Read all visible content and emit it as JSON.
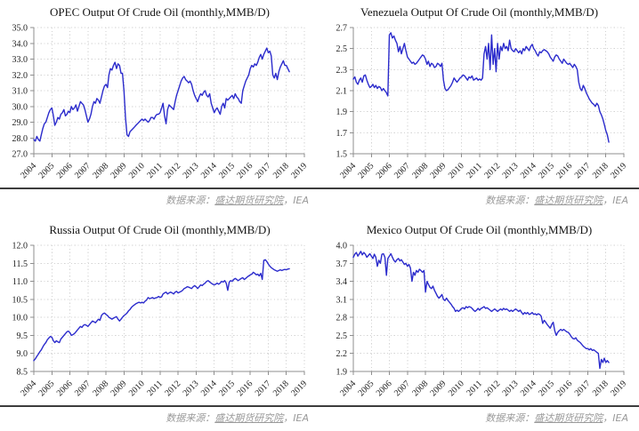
{
  "source_note": {
    "prefix": "数据来源：",
    "link": "盛达期货研究院",
    "suffix": "，IEA"
  },
  "style": {
    "line_color": "#2b2bcc",
    "grid_color": "#d2d2d2",
    "axis_color": "#8f8f8f",
    "tick_text_color": "#1c1c1c",
    "separator_color": "#3d3d3d",
    "caption_color": "#9a9a9a",
    "background": "#ffffff"
  },
  "chart_data": [
    {
      "type": "line",
      "title": "OPEC Output Of Crude Oil (monthly,MMB/D)",
      "x_range": [
        2004,
        2019
      ],
      "x_tick_labels": [
        "2004",
        "2005",
        "2006",
        "2007",
        "2008",
        "2009",
        "2010",
        "2011",
        "2012",
        "2013",
        "2014",
        "2015",
        "2016",
        "2017",
        "2018",
        "2019"
      ],
      "months_per_point": 1,
      "start_year": 2004,
      "ylim": [
        27.0,
        35.0
      ],
      "y_ticks": [
        27.0,
        28.0,
        29.0,
        30.0,
        31.0,
        32.0,
        33.0,
        34.0,
        35.0
      ],
      "y_decimals": 1,
      "grid": true,
      "legend": "none",
      "line_color": "#2b2bcc",
      "values": [
        27.9,
        27.8,
        28.1,
        27.9,
        27.8,
        28.2,
        28.6,
        28.9,
        29.0,
        29.3,
        29.6,
        29.8,
        29.9,
        29.4,
        28.8,
        29.0,
        29.3,
        29.2,
        29.5,
        29.6,
        29.8,
        29.4,
        29.5,
        29.7,
        29.6,
        30.0,
        29.8,
        29.9,
        30.1,
        29.7,
        30.0,
        30.3,
        30.2,
        30.1,
        29.8,
        29.4,
        29.0,
        29.2,
        29.5,
        30.0,
        30.3,
        30.2,
        30.5,
        30.4,
        30.2,
        30.6,
        31.0,
        31.3,
        31.4,
        31.2,
        32.0,
        32.4,
        32.3,
        32.6,
        32.8,
        32.4,
        32.7,
        32.6,
        32.1,
        32.1,
        31.0,
        29.3,
        28.2,
        28.1,
        28.4,
        28.5,
        28.6,
        28.7,
        28.8,
        28.9,
        29.0,
        29.1,
        29.2,
        29.1,
        29.2,
        29.1,
        29.0,
        29.1,
        29.3,
        29.3,
        29.2,
        29.4,
        29.5,
        29.5,
        29.6,
        29.9,
        30.2,
        29.4,
        28.9,
        29.8,
        30.1,
        30.0,
        29.9,
        29.8,
        30.3,
        30.7,
        31.0,
        31.3,
        31.6,
        31.8,
        31.9,
        31.7,
        31.6,
        31.5,
        31.6,
        31.4,
        31.0,
        30.7,
        30.5,
        30.3,
        30.6,
        30.8,
        30.7,
        30.9,
        31.0,
        30.7,
        30.6,
        30.8,
        30.2,
        29.9,
        29.6,
        29.8,
        29.9,
        29.7,
        29.5,
        30.0,
        30.2,
        29.9,
        30.5,
        30.4,
        30.5,
        30.6,
        30.7,
        30.5,
        30.8,
        30.6,
        30.5,
        30.3,
        30.2,
        31.0,
        31.3,
        31.6,
        31.8,
        32.0,
        32.4,
        32.6,
        32.5,
        32.7,
        32.6,
        32.8,
        33.1,
        33.3,
        33.0,
        33.3,
        33.5,
        33.7,
        33.4,
        33.5,
        33.2,
        32.0,
        31.8,
        32.1,
        31.7,
        32.2,
        32.5,
        32.7,
        32.9,
        32.6,
        32.6,
        32.4,
        32.2
      ]
    },
    {
      "type": "line",
      "title": "Venezuela Output Of Crude Oil (monthly,MMB/D)",
      "x_range": [
        2004,
        2019
      ],
      "x_tick_labels": [
        "2004",
        "2005",
        "2006",
        "2007",
        "2008",
        "2009",
        "2010",
        "2011",
        "2012",
        "2013",
        "2014",
        "2015",
        "2016",
        "2017",
        "2018",
        "2019"
      ],
      "months_per_point": 1,
      "start_year": 2004,
      "ylim": [
        1.5,
        2.7
      ],
      "y_ticks": [
        1.5,
        1.7,
        1.9,
        2.1,
        2.3,
        2.5,
        2.7
      ],
      "y_decimals": 1,
      "grid": true,
      "legend": "none",
      "line_color": "#2b2bcc",
      "values": [
        2.21,
        2.23,
        2.18,
        2.16,
        2.2,
        2.22,
        2.18,
        2.24,
        2.25,
        2.2,
        2.16,
        2.13,
        2.14,
        2.16,
        2.13,
        2.15,
        2.12,
        2.14,
        2.13,
        2.1,
        2.12,
        2.1,
        2.08,
        2.05,
        2.63,
        2.65,
        2.6,
        2.62,
        2.58,
        2.55,
        2.47,
        2.52,
        2.45,
        2.5,
        2.55,
        2.48,
        2.42,
        2.4,
        2.38,
        2.36,
        2.37,
        2.35,
        2.36,
        2.38,
        2.4,
        2.42,
        2.44,
        2.43,
        2.4,
        2.35,
        2.38,
        2.33,
        2.36,
        2.35,
        2.32,
        2.33,
        2.36,
        2.35,
        2.33,
        2.36,
        2.2,
        2.12,
        2.1,
        2.11,
        2.13,
        2.15,
        2.18,
        2.22,
        2.2,
        2.18,
        2.2,
        2.22,
        2.23,
        2.25,
        2.24,
        2.22,
        2.2,
        2.23,
        2.22,
        2.24,
        2.2,
        2.21,
        2.22,
        2.2,
        2.21,
        2.2,
        2.22,
        2.45,
        2.52,
        2.4,
        2.55,
        2.3,
        2.63,
        2.35,
        2.5,
        2.28,
        2.55,
        2.4,
        2.52,
        2.48,
        2.55,
        2.5,
        2.52,
        2.48,
        2.58,
        2.5,
        2.48,
        2.47,
        2.5,
        2.48,
        2.46,
        2.48,
        2.45,
        2.5,
        2.48,
        2.52,
        2.5,
        2.48,
        2.52,
        2.54,
        2.5,
        2.48,
        2.45,
        2.43,
        2.47,
        2.46,
        2.48,
        2.49,
        2.48,
        2.47,
        2.45,
        2.42,
        2.4,
        2.38,
        2.42,
        2.44,
        2.43,
        2.4,
        2.38,
        2.36,
        2.4,
        2.38,
        2.36,
        2.35,
        2.36,
        2.34,
        2.32,
        2.35,
        2.33,
        2.3,
        2.18,
        2.12,
        2.1,
        2.15,
        2.12,
        2.08,
        2.05,
        2.02,
        2.0,
        1.98,
        1.97,
        1.95,
        1.98,
        1.96,
        1.9,
        1.87,
        1.83,
        1.78,
        1.72,
        1.68,
        1.61
      ]
    },
    {
      "type": "line",
      "title": "Russia Output Of Crude Oil (monthly,MMB/D)",
      "x_range": [
        2004,
        2019
      ],
      "x_tick_labels": [
        "2004",
        "2005",
        "2006",
        "2007",
        "2008",
        "2009",
        "2010",
        "2011",
        "2012",
        "2013",
        "2014",
        "2015",
        "2016",
        "2017",
        "2018",
        "2019"
      ],
      "months_per_point": 1,
      "start_year": 2004,
      "ylim": [
        8.5,
        12.0
      ],
      "y_ticks": [
        8.5,
        9.0,
        9.5,
        10.0,
        10.5,
        11.0,
        11.5,
        12.0
      ],
      "y_decimals": 1,
      "grid": true,
      "legend": "none",
      "line_color": "#2b2bcc",
      "values": [
        8.8,
        8.85,
        8.92,
        8.98,
        9.05,
        9.1,
        9.18,
        9.25,
        9.3,
        9.38,
        9.43,
        9.47,
        9.45,
        9.35,
        9.3,
        9.35,
        9.32,
        9.3,
        9.4,
        9.45,
        9.5,
        9.55,
        9.6,
        9.62,
        9.58,
        9.5,
        9.52,
        9.55,
        9.6,
        9.65,
        9.7,
        9.75,
        9.72,
        9.78,
        9.8,
        9.78,
        9.75,
        9.8,
        9.85,
        9.9,
        9.88,
        9.85,
        9.9,
        9.95,
        9.92,
        10.05,
        10.1,
        10.12,
        10.08,
        10.05,
        10.0,
        9.98,
        9.95,
        9.98,
        10.0,
        10.02,
        9.95,
        9.9,
        9.95,
        10.0,
        10.05,
        10.08,
        10.12,
        10.18,
        10.22,
        10.28,
        10.32,
        10.35,
        10.38,
        10.4,
        10.42,
        10.4,
        10.42,
        10.4,
        10.45,
        10.48,
        10.55,
        10.52,
        10.53,
        10.55,
        10.52,
        10.54,
        10.55,
        10.58,
        10.55,
        10.57,
        10.65,
        10.68,
        10.7,
        10.65,
        10.68,
        10.7,
        10.68,
        10.65,
        10.7,
        10.72,
        10.68,
        10.7,
        10.72,
        10.75,
        10.8,
        10.82,
        10.85,
        10.84,
        10.82,
        10.8,
        10.85,
        10.88,
        10.85,
        10.8,
        10.85,
        10.9,
        10.88,
        10.92,
        10.95,
        11.0,
        11.02,
        10.98,
        10.95,
        10.92,
        10.9,
        10.92,
        10.95,
        10.92,
        10.95,
        11.0,
        10.98,
        11.02,
        10.95,
        10.75,
        10.98,
        11.02,
        11.0,
        11.05,
        11.08,
        11.05,
        11.02,
        11.05,
        11.08,
        11.1,
        11.05,
        11.08,
        11.12,
        11.15,
        11.18,
        11.2,
        11.25,
        11.22,
        11.18,
        11.2,
        11.15,
        11.22,
        11.05,
        11.58,
        11.6,
        11.55,
        11.48,
        11.42,
        11.38,
        11.35,
        11.32,
        11.3,
        11.28,
        11.3,
        11.32,
        11.3,
        11.32,
        11.33,
        11.32,
        11.34,
        11.35
      ]
    },
    {
      "type": "line",
      "title": "Mexico Output Of Crude Oil (monthly,MMB/D)",
      "x_range": [
        2004,
        2019
      ],
      "x_tick_labels": [
        "2004",
        "2005",
        "2006",
        "2007",
        "2008",
        "2009",
        "2010",
        "2011",
        "2012",
        "2013",
        "2014",
        "2015",
        "2016",
        "2017",
        "2018",
        "2019"
      ],
      "months_per_point": 1,
      "start_year": 2004,
      "ylim": [
        1.9,
        4.0
      ],
      "y_ticks": [
        1.9,
        2.2,
        2.5,
        2.8,
        3.1,
        3.4,
        3.7,
        4.0
      ],
      "y_decimals": 1,
      "grid": true,
      "legend": "none",
      "line_color": "#2b2bcc",
      "values": [
        3.8,
        3.85,
        3.88,
        3.82,
        3.86,
        3.9,
        3.84,
        3.88,
        3.85,
        3.8,
        3.83,
        3.86,
        3.82,
        3.78,
        3.85,
        3.8,
        3.65,
        3.75,
        3.7,
        3.85,
        3.86,
        3.8,
        3.5,
        3.78,
        3.82,
        3.86,
        3.8,
        3.75,
        3.72,
        3.76,
        3.78,
        3.74,
        3.76,
        3.72,
        3.68,
        3.7,
        3.65,
        3.68,
        3.62,
        3.4,
        3.55,
        3.5,
        3.58,
        3.55,
        3.6,
        3.58,
        3.55,
        3.58,
        3.22,
        3.4,
        3.35,
        3.3,
        3.28,
        3.32,
        3.25,
        3.2,
        3.15,
        3.12,
        3.15,
        3.18,
        3.1,
        3.08,
        3.12,
        3.08,
        3.05,
        3.02,
        2.98,
        2.95,
        2.9,
        2.92,
        2.9,
        2.92,
        2.95,
        2.96,
        2.94,
        2.98,
        2.96,
        2.98,
        2.97,
        2.95,
        2.92,
        2.9,
        2.92,
        2.95,
        2.92,
        2.95,
        2.96,
        2.98,
        2.95,
        2.96,
        2.94,
        2.92,
        2.9,
        2.92,
        2.94,
        2.92,
        2.9,
        2.92,
        2.94,
        2.92,
        2.95,
        2.93,
        2.94,
        2.92,
        2.9,
        2.92,
        2.9,
        2.92,
        2.94,
        2.92,
        2.9,
        2.92,
        2.88,
        2.85,
        2.88,
        2.86,
        2.88,
        2.85,
        2.86,
        2.88,
        2.85,
        2.86,
        2.84,
        2.86,
        2.85,
        2.82,
        2.7,
        2.75,
        2.72,
        2.68,
        2.65,
        2.62,
        2.68,
        2.72,
        2.58,
        2.5,
        2.55,
        2.58,
        2.6,
        2.58,
        2.6,
        2.58,
        2.56,
        2.55,
        2.52,
        2.48,
        2.45,
        2.44,
        2.46,
        2.42,
        2.4,
        2.38,
        2.35,
        2.32,
        2.3,
        2.28,
        2.28,
        2.26,
        2.28,
        2.25,
        2.26,
        2.24,
        2.22,
        2.2,
        1.95,
        2.1,
        2.05,
        2.12,
        2.05,
        2.08,
        2.05
      ]
    }
  ]
}
